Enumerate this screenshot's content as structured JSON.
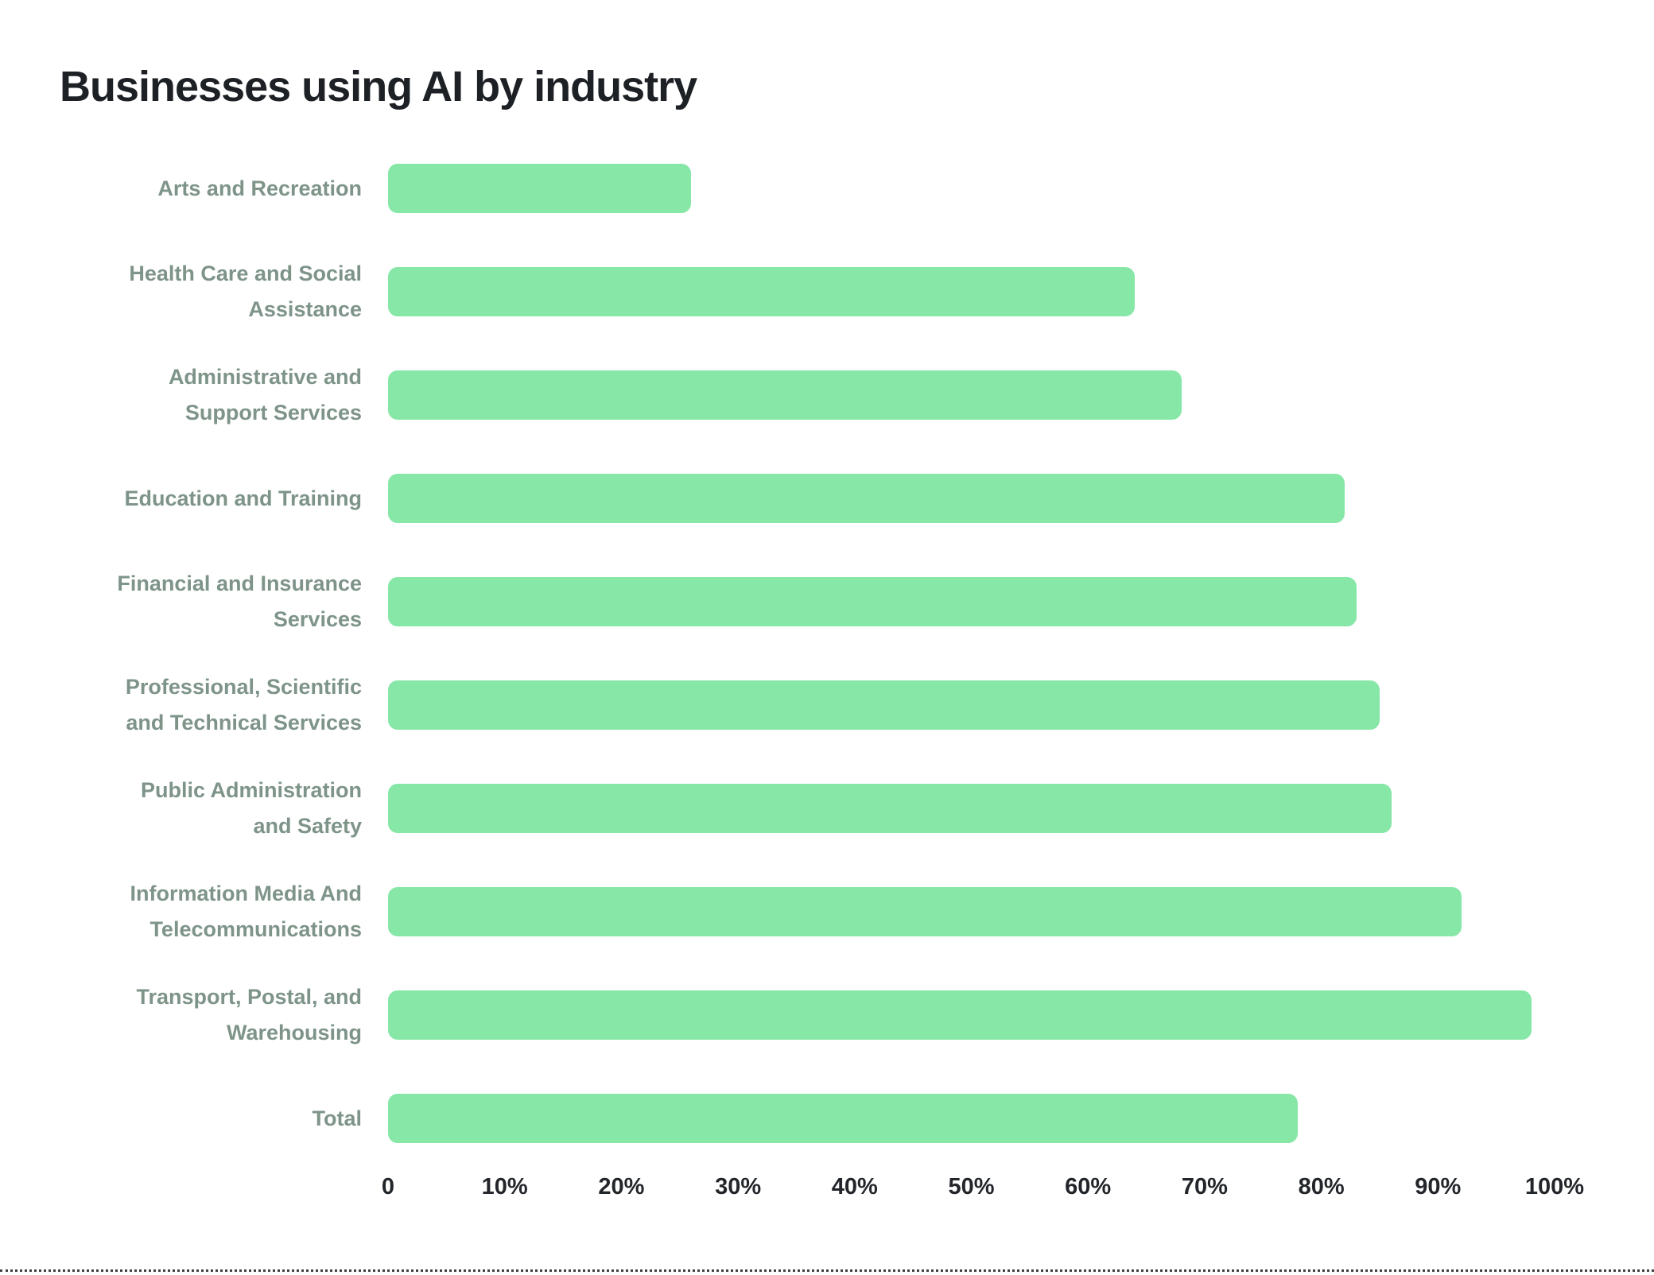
{
  "chart_data": {
    "type": "bar",
    "orientation": "horizontal",
    "title": "Businesses using AI by industry",
    "categories": [
      "Arts and Recreation",
      "Health Care and Social Assistance",
      "Administrative and Support Services",
      "Education and Training",
      "Financial and Insurance Services",
      "Professional, Scientific and Technical Services",
      "Public Administration and Safety",
      "Information Media And Telecommunications",
      "Transport, Postal, and Warehousing",
      "Total"
    ],
    "category_lines": [
      [
        "Arts and Recreation"
      ],
      [
        "Health Care and Social",
        "Assistance"
      ],
      [
        "Administrative and",
        "Support Services"
      ],
      [
        "Education and Training"
      ],
      [
        "Financial and Insurance",
        "Services"
      ],
      [
        "Professional, Scientific",
        "and Technical Services"
      ],
      [
        "Public Administration",
        "and Safety"
      ],
      [
        "Information Media And",
        "Telecommunications"
      ],
      [
        "Transport, Postal, and",
        "Warehousing"
      ],
      [
        "Total"
      ]
    ],
    "values": [
      26,
      64,
      68,
      82,
      83,
      85,
      86,
      92,
      98,
      78
    ],
    "unit": "%",
    "x_ticks": [
      "0",
      "10%",
      "20%",
      "30%",
      "40%",
      "50%",
      "60%",
      "70%",
      "80%",
      "90%",
      "100%"
    ],
    "x_tick_values": [
      0,
      10,
      20,
      30,
      40,
      50,
      60,
      70,
      80,
      90,
      100
    ],
    "xlim": [
      0,
      100
    ],
    "grid": false,
    "legend": false,
    "colors": {
      "bar": "#86e7a7",
      "label": "#7e9489",
      "title": "#1d2125",
      "tick": "#22262a",
      "separator": "#3f3f3f",
      "background": "#ffffff"
    }
  }
}
